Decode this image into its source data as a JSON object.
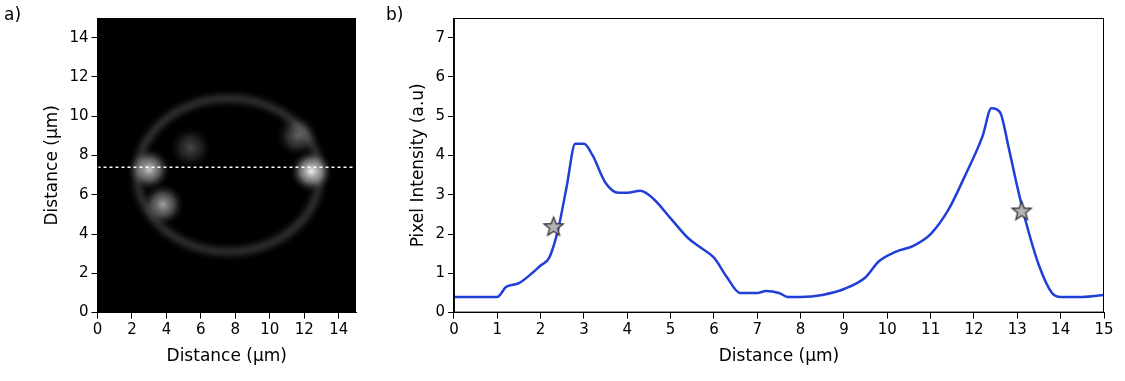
{
  "chart_data": [
    {
      "type": "image",
      "panel_label": "a)",
      "x_label": "Distance (μm)",
      "y_label": "Distance (μm)",
      "xlim": [
        0,
        15
      ],
      "xticks": [
        0,
        2,
        4,
        6,
        8,
        10,
        12,
        14
      ],
      "ylim": [
        0,
        15
      ],
      "yticks": [
        0,
        2,
        4,
        6,
        8,
        10,
        12,
        14
      ],
      "grid": false,
      "profile_line": {
        "y": 7.4,
        "color": "#ffffff",
        "line_style": "dashed"
      },
      "ring": {
        "x": 7.6,
        "y": 7.0,
        "rx": 5.3,
        "ry": 3.9
      },
      "bright_spots": [
        {
          "x": 3.0,
          "y": 7.3,
          "intensity": 4.3
        },
        {
          "x": 3.8,
          "y": 5.5,
          "intensity": 3.5
        },
        {
          "x": 12.4,
          "y": 7.2,
          "intensity": 5.2
        },
        {
          "x": 11.6,
          "y": 9.0,
          "intensity": 2.0
        },
        {
          "x": 5.4,
          "y": 8.4,
          "intensity": 1.5
        }
      ]
    },
    {
      "type": "line",
      "panel_label": "b)",
      "x_label": "Distance (μm)",
      "y_label": "Pixel Intensity (a.u)",
      "xlim": [
        0,
        15
      ],
      "xticks": [
        0,
        1,
        2,
        3,
        4,
        5,
        6,
        7,
        8,
        9,
        10,
        11,
        12,
        13,
        14,
        15
      ],
      "ylim": [
        0,
        7.5
      ],
      "yticks": [
        0,
        1,
        2,
        3,
        4,
        5,
        6,
        7
      ],
      "grid": false,
      "series": [
        {
          "type": "line",
          "color": "#1f3fd8",
          "line_style": "solid",
          "x": [
            0,
            0.5,
            1.0,
            1.2,
            1.5,
            1.8,
            2.0,
            2.2,
            2.4,
            2.6,
            2.8,
            3.0,
            3.2,
            3.5,
            3.8,
            4.0,
            4.3,
            4.6,
            5.0,
            5.4,
            5.7,
            6.0,
            6.3,
            6.6,
            7.0,
            7.2,
            7.5,
            7.7,
            8.0,
            8.5,
            9.0,
            9.5,
            9.8,
            10.2,
            10.6,
            11.0,
            11.4,
            11.8,
            12.2,
            12.4,
            12.6,
            12.8,
            13.0,
            13.2,
            13.5,
            13.8,
            14.0,
            14.5,
            15.0
          ],
          "values": [
            0.4,
            0.4,
            0.4,
            0.65,
            0.75,
            1.0,
            1.2,
            1.4,
            2.1,
            3.2,
            4.3,
            4.3,
            4.0,
            3.3,
            3.05,
            3.05,
            3.1,
            2.9,
            2.4,
            1.9,
            1.65,
            1.4,
            0.9,
            0.5,
            0.5,
            0.55,
            0.5,
            0.4,
            0.4,
            0.45,
            0.6,
            0.9,
            1.3,
            1.55,
            1.7,
            2.0,
            2.6,
            3.5,
            4.5,
            5.2,
            5.1,
            4.2,
            3.2,
            2.3,
            1.2,
            0.5,
            0.4,
            0.4,
            0.45
          ]
        },
        {
          "type": "scatter",
          "color": "#b4b4b4",
          "marker": "star",
          "x": [
            2.3,
            13.1
          ],
          "values": [
            2.2,
            2.6
          ]
        }
      ]
    }
  ]
}
